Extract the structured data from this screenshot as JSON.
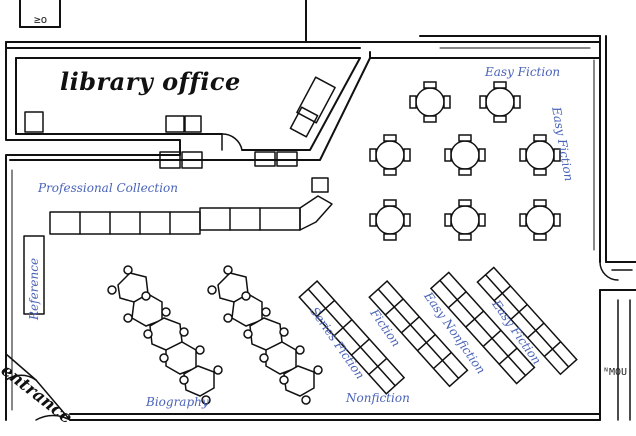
{
  "office": {
    "label": "library office"
  },
  "entrance": {
    "label": "entrance"
  },
  "sections": {
    "easy_fiction_top": "Easy Fiction",
    "easy_fiction_side": "Easy Fiction",
    "professional_collection": "Professional Collection",
    "reference": "Reference",
    "series_fiction": "Series Fiction",
    "fiction": "Fiction",
    "easy_nonfiction": "Easy Nonfiction",
    "easy_fiction_shelf": "Easy Fiction",
    "biography": "Biography",
    "nonfiction": "Nonfiction"
  },
  "corner_tags": {
    "top_left": "≥o",
    "right": "ᴺMOU"
  }
}
